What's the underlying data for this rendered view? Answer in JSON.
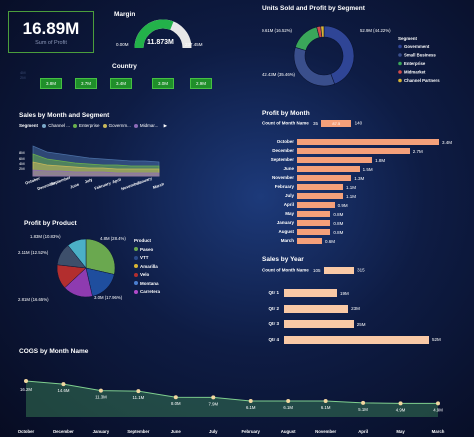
{
  "kpi": {
    "value": "16.89M",
    "label": "Sum of Profit"
  },
  "margin": {
    "title": "Margin",
    "min": "0.00M",
    "value": "11.873M",
    "max": "237.45M",
    "fill_fraction": 0.62,
    "color": "#23b24a"
  },
  "country": {
    "title": "Country",
    "boxes": [
      "3.8M",
      "3.7M",
      "3.4M",
      "3.0M",
      "2.9M"
    ]
  },
  "sales_month_segment": {
    "title": "Sales by Month and Segment",
    "legend_label": "Segment",
    "legend": [
      {
        "name": "Channel ...",
        "color": "#7aa8c8"
      },
      {
        "name": "Enterprise",
        "color": "#6ab04c"
      },
      {
        "name": "Governm...",
        "color": "#c8b85a"
      },
      {
        "name": "Midmar...",
        "color": "#8d6bb8"
      }
    ],
    "y_labels": [
      "8M",
      "6M",
      "4M",
      "2M"
    ],
    "x_labels": [
      "October",
      "December",
      "September",
      "June",
      "July",
      "February",
      "April",
      "November",
      "January",
      "March"
    ]
  },
  "units_profit_segment": {
    "title": "Units Sold and Profit by Segment",
    "legend_title": "Segment",
    "slices": [
      {
        "name": "Government",
        "value": 52.9,
        "label": "52.9M (44.22%)",
        "color": "#2f4596"
      },
      {
        "name": "Small Business",
        "value": 42.4,
        "label": "42.43M (35.46%)",
        "color": "#3a4f8c"
      },
      {
        "name": "Enterprise",
        "value": 19.6,
        "label": "19.61M (16.52%)",
        "color": "#3aa65a"
      },
      {
        "name": "Midmarket",
        "value": 2.6,
        "label": "",
        "color": "#d24b4b"
      },
      {
        "name": "Channel Partners",
        "value": 2.1,
        "label": "",
        "color": "#d8b534"
      }
    ]
  },
  "profit_month": {
    "title": "Profit by Month",
    "slider_label": "Count of Month Name",
    "slider_min": "35",
    "slider_mid": "87.5",
    "slider_max": "140",
    "bars": [
      {
        "month": "October",
        "value": 3.4,
        "label": "3.4M"
      },
      {
        "month": "December",
        "value": 2.7,
        "label": "2.7M"
      },
      {
        "month": "September",
        "value": 1.8,
        "label": "1.8M"
      },
      {
        "month": "June",
        "value": 1.5,
        "label": "1.5M"
      },
      {
        "month": "November",
        "value": 1.3,
        "label": "1.3M"
      },
      {
        "month": "February",
        "value": 1.1,
        "label": "1.1M"
      },
      {
        "month": "July",
        "value": 1.1,
        "label": "1.1M"
      },
      {
        "month": "April",
        "value": 0.9,
        "label": "0.9M"
      },
      {
        "month": "May",
        "value": 0.8,
        "label": "0.8M"
      },
      {
        "month": "January",
        "value": 0.8,
        "label": "0.8M"
      },
      {
        "month": "August",
        "value": 0.8,
        "label": "0.8M"
      },
      {
        "month": "March",
        "value": 0.6,
        "label": "0.6M"
      }
    ]
  },
  "profit_product": {
    "title": "Profit by Product",
    "legend_title": "Product",
    "slices": [
      {
        "name": "Paseo",
        "value": 4.8,
        "label": "4.8M (28.4%)",
        "color": "#6aa84f"
      },
      {
        "name": "VTT",
        "value": 3.0,
        "label": "3.0M (17.96%)",
        "color": "#1f4e9e"
      },
      {
        "name": "Amarilla",
        "value": 2.8,
        "label": "2.81M (16.65%)",
        "color": "#8e3bb0"
      },
      {
        "name": "Velo",
        "value": 2.3,
        "label": "",
        "color": "#b32e2e"
      },
      {
        "name": "Montana",
        "value": 2.1,
        "label": "2.11M (12.52%)",
        "color": "#3d4f6b"
      },
      {
        "name": "Carretera",
        "value": 1.8,
        "label": "1.83M (10.83%)",
        "color": "#4bb0c6"
      }
    ],
    "legend_colors": [
      "#6aa84f",
      "#2b4a8a",
      "#d8b534",
      "#b32e2e",
      "#4b7fd0",
      "#b14ac9"
    ]
  },
  "sales_year": {
    "title": "Sales by Year",
    "slider_label": "Count of Month Name",
    "slider_min": "105",
    "slider_max": "315",
    "bars": [
      {
        "label": "Qtr 1",
        "value": 19,
        "text": "19M"
      },
      {
        "label": "Qtr 2",
        "value": 23,
        "text": "23M"
      },
      {
        "label": "Qtr 3",
        "value": 25,
        "text": "25M"
      },
      {
        "label": "Qtr 4",
        "value": 52,
        "text": "52M"
      }
    ]
  },
  "cogs": {
    "title": "COGS by Month Name",
    "points": [
      {
        "x": "October",
        "y": 16.2,
        "label": "16.2M"
      },
      {
        "x": "December",
        "y": 14.6,
        "label": "14.6M"
      },
      {
        "x": "January",
        "y": 11.3,
        "label": "11.3M"
      },
      {
        "x": "September",
        "y": 11.1,
        "label": "11.1M"
      },
      {
        "x": "June",
        "y": 8.0,
        "label": "8.0M"
      },
      {
        "x": "July",
        "y": 7.9,
        "label": "7.9M"
      },
      {
        "x": "February",
        "y": 6.1,
        "label": "6.1M"
      },
      {
        "x": "August",
        "y": 6.1,
        "label": "6.1M"
      },
      {
        "x": "November",
        "y": 6.1,
        "label": "6.1M"
      },
      {
        "x": "April",
        "y": 5.1,
        "label": "5.1M"
      },
      {
        "x": "May",
        "y": 4.9,
        "label": "4.9M"
      },
      {
        "x": "March",
        "y": 4.9,
        "label": "4.9M"
      }
    ]
  }
}
